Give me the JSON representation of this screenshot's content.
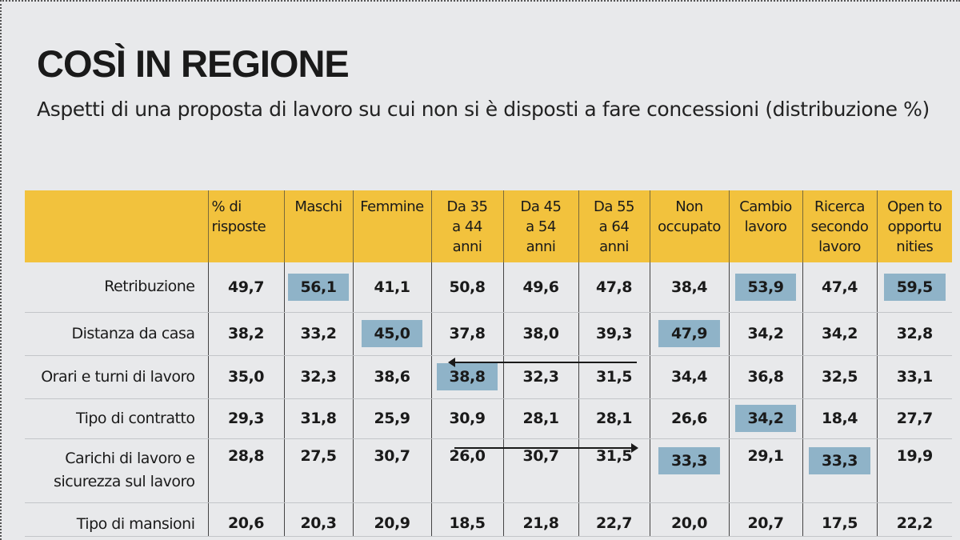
{
  "title": "COSÌ IN REGIONE",
  "subtitle": "Aspetti di una proposta di lavoro su cui non si è disposti a fare concessioni (distribuzione %)",
  "columns": [
    {
      "lines": [
        "% di",
        "risposte"
      ]
    },
    {
      "lines": [
        "Maschi"
      ]
    },
    {
      "lines": [
        "Femmine"
      ]
    },
    {
      "lines": [
        "Da 35",
        "a 44",
        "anni"
      ]
    },
    {
      "lines": [
        "Da 45",
        "a 54",
        "anni"
      ]
    },
    {
      "lines": [
        "Da 55",
        "a 64",
        "anni"
      ]
    },
    {
      "lines": [
        "Non",
        "occupato"
      ]
    },
    {
      "lines": [
        "Cambio",
        "lavoro"
      ]
    },
    {
      "lines": [
        "Ricerca",
        "secondo",
        "lavoro"
      ]
    },
    {
      "lines": [
        "Open to",
        "opportu",
        "nities"
      ]
    }
  ],
  "rows": [
    {
      "label": [
        "Retribuzione"
      ],
      "values": [
        "49,7",
        "56,1",
        "41,1",
        "50,8",
        "49,6",
        "47,8",
        "38,4",
        "53,9",
        "47,4",
        "59,5"
      ],
      "highlight": [
        1,
        7,
        9
      ]
    },
    {
      "label": [
        "Distanza da casa"
      ],
      "values": [
        "38,2",
        "33,2",
        "45,0",
        "37,8",
        "38,0",
        "39,3",
        "47,9",
        "34,2",
        "34,2",
        "32,8"
      ],
      "highlight": [
        2,
        6
      ]
    },
    {
      "label": [
        "Orari e turni di lavoro"
      ],
      "values": [
        "35,0",
        "32,3",
        "38,6",
        "38,8",
        "32,3",
        "31,5",
        "34,4",
        "36,8",
        "32,5",
        "33,1"
      ],
      "highlight": [
        3
      ]
    },
    {
      "label": [
        "Tipo di contratto"
      ],
      "values": [
        "29,3",
        "31,8",
        "25,9",
        "30,9",
        "28,1",
        "28,1",
        "26,6",
        "34,2",
        "18,4",
        "27,7"
      ],
      "highlight": [
        7
      ]
    },
    {
      "label": [
        "Carichi di lavoro e",
        "sicurezza sul lavoro"
      ],
      "values": [
        "28,8",
        "27,5",
        "30,7",
        "26,0",
        "30,7",
        "31,5",
        "33,3",
        "29,1",
        "33,3",
        "19,9"
      ],
      "highlight": [
        6,
        8
      ]
    },
    {
      "label": [
        "Tipo di mansioni"
      ],
      "values": [
        "20,6",
        "20,3",
        "20,9",
        "18,5",
        "21,8",
        "22,7",
        "20,0",
        "20,7",
        "17,5",
        "22,2"
      ],
      "highlight": []
    }
  ],
  "colors": {
    "header_bg": "#f2c23d",
    "highlight_bg": "#8fb3c8",
    "panel_bg": "#e8e9eb"
  }
}
